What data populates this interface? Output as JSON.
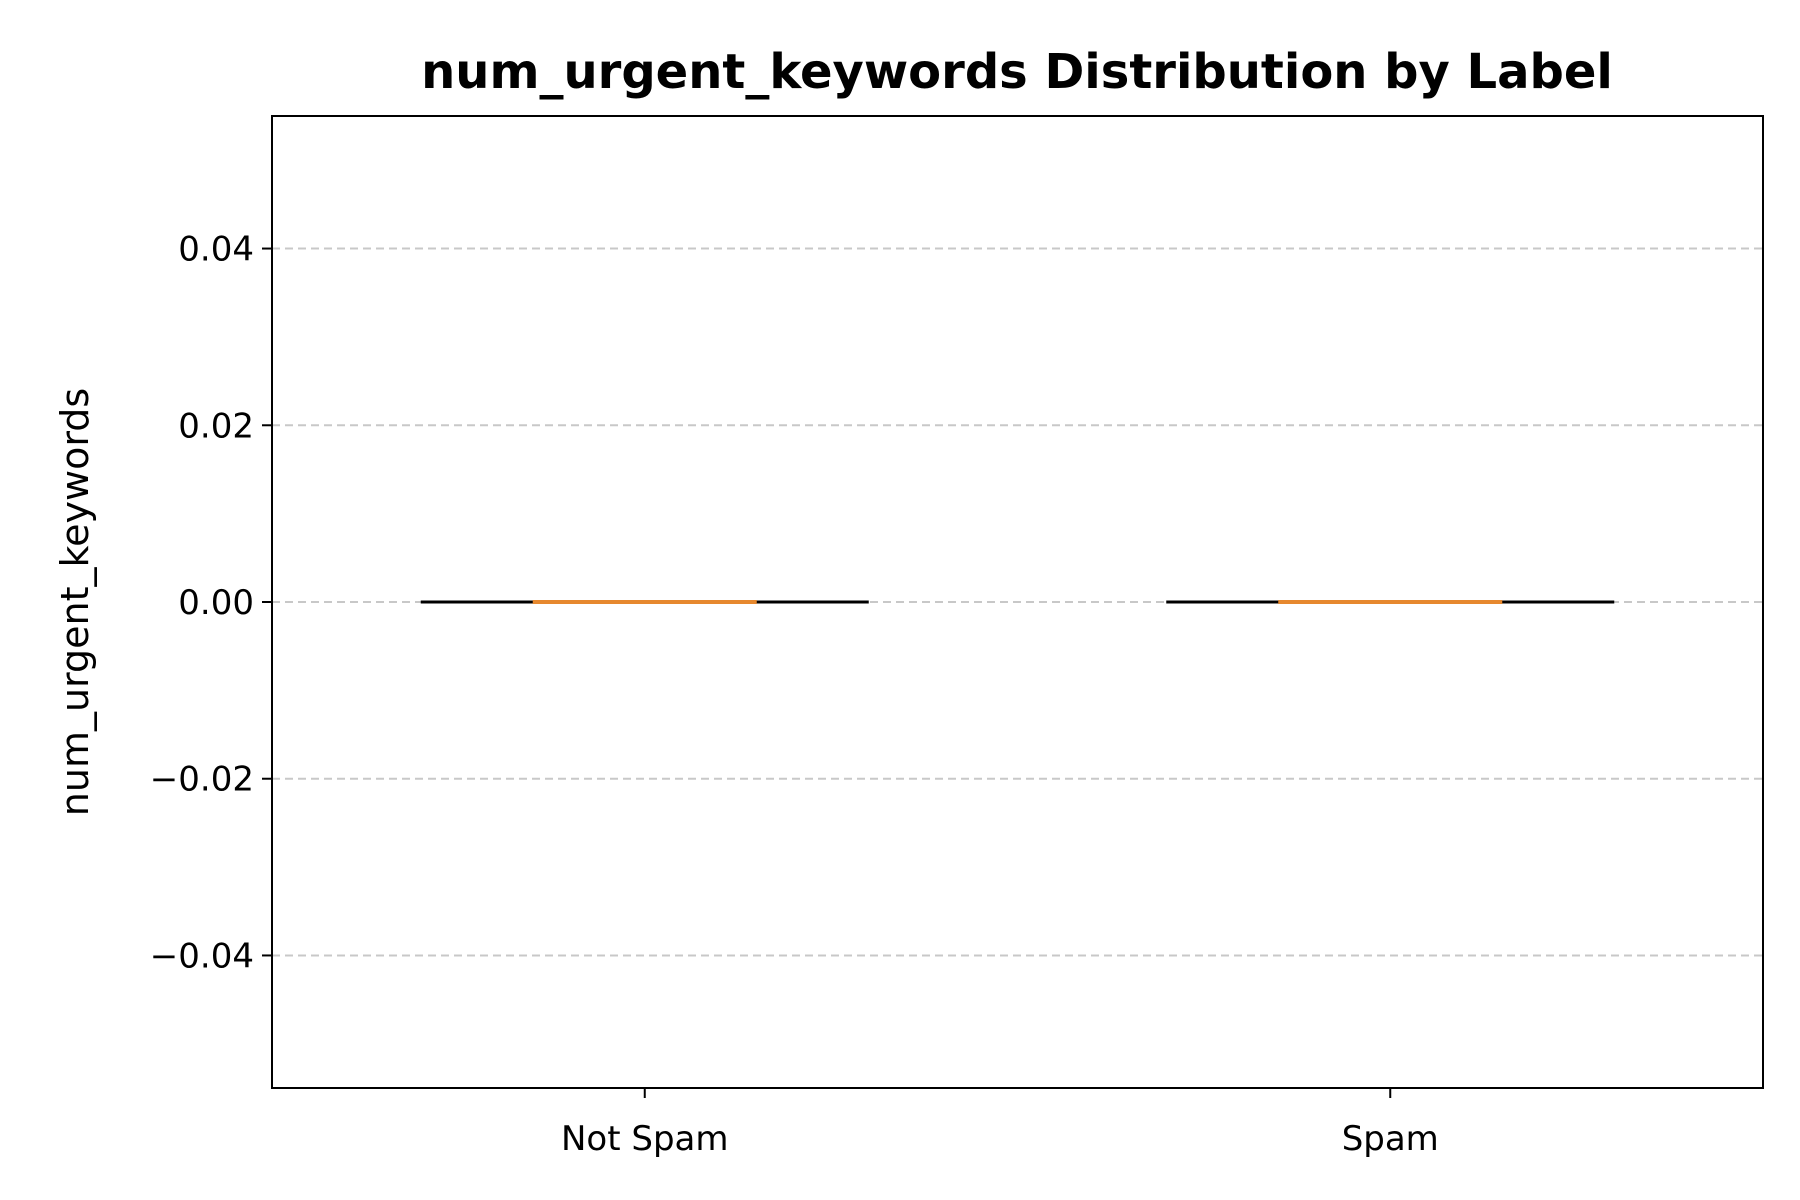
{
  "chart_data": {
    "type": "box",
    "title": "num_urgent_keywords Distribution by Label",
    "xlabel": "",
    "ylabel": "num_urgent_keywords",
    "categories": [
      "Not Spam",
      "Spam"
    ],
    "boxes": [
      {
        "category": "Not Spam",
        "min": 0,
        "q1": 0,
        "median": 0,
        "q3": 0,
        "max": 0
      },
      {
        "category": "Spam",
        "min": 0,
        "q1": 0,
        "median": 0,
        "q3": 0,
        "max": 0
      }
    ],
    "ylim": [
      -0.055,
      0.055
    ],
    "yticks": [
      -0.04,
      -0.02,
      0.0,
      0.02,
      0.04
    ],
    "ytick_labels": [
      "−0.04",
      "−0.02",
      "0.00",
      "0.02",
      "0.04"
    ],
    "grid": "y-dashed",
    "colors": {
      "median": "#e6882e",
      "whisker": "#000000",
      "grid": "#c8c8c8",
      "frame": "#000000"
    }
  }
}
